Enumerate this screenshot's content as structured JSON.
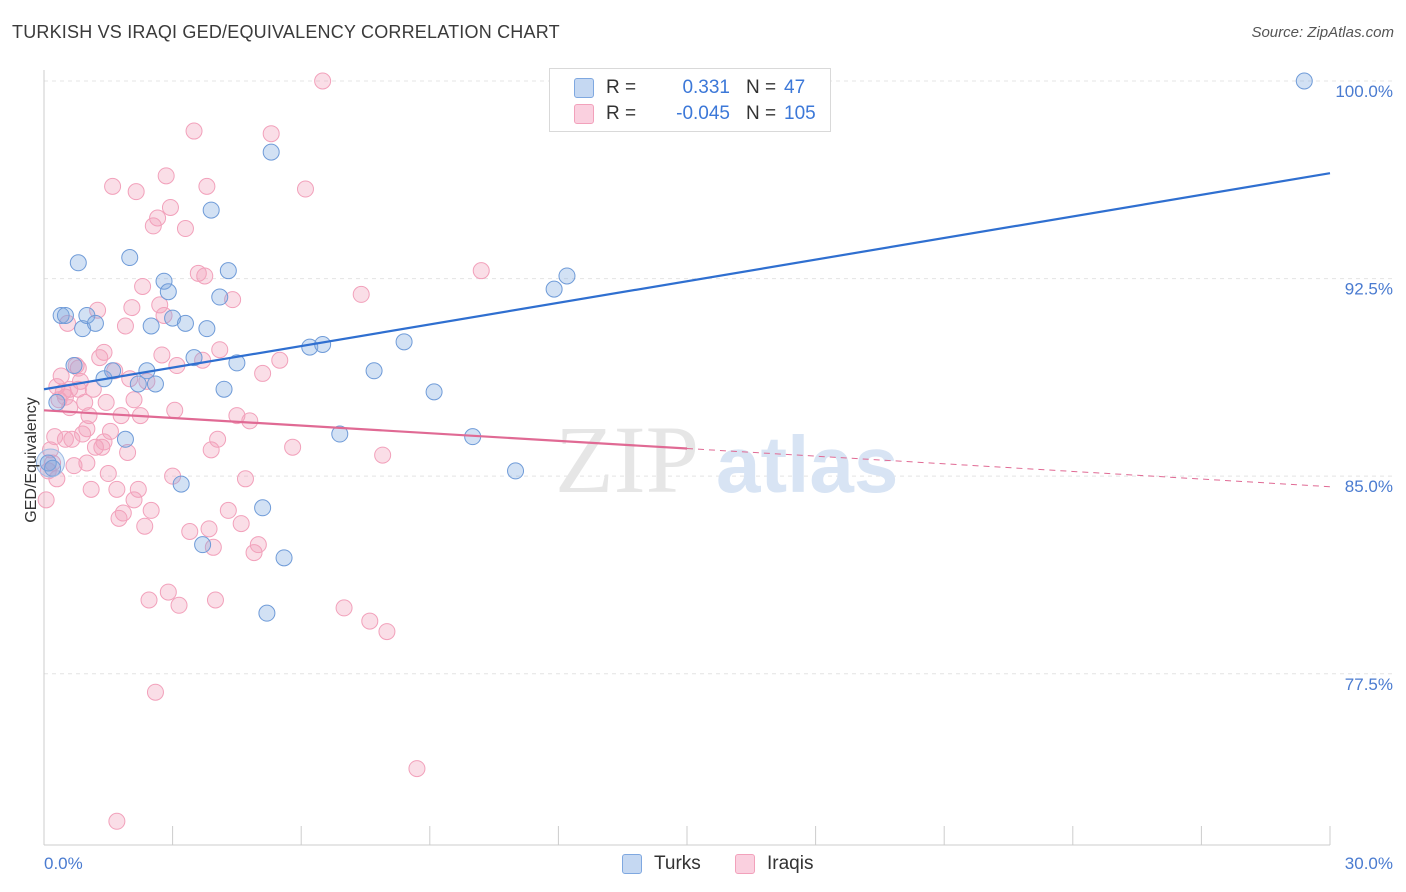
{
  "title": "TURKISH VS IRAQI GED/EQUIVALENCY CORRELATION CHART",
  "source": "Source: ZipAtlas.com",
  "legend": {
    "rows": [
      {
        "r_label": "R =",
        "r_value": "0.331",
        "n_label": "N =",
        "n_value": "47",
        "color": "#7fa8e0"
      },
      {
        "r_label": "R =",
        "r_value": "-0.045",
        "n_label": "N =",
        "n_value": "105",
        "color": "#f2a1bb"
      }
    ],
    "series_names": [
      "Turks",
      "Iraqis"
    ]
  },
  "watermark": {
    "zip": "ZIP",
    "atlas": "atlas"
  },
  "chart_data": {
    "type": "scatter",
    "title": "TURKISH VS IRAQI GED/EQUIVALENCY CORRELATION CHART",
    "ylabel": "GED/Equivalency",
    "xlim": [
      0,
      30
    ],
    "ylim": [
      71.0,
      100.0
    ],
    "y_ticks": [
      {
        "value": 77.5,
        "label": "77.5%"
      },
      {
        "value": 85.0,
        "label": "85.0%"
      },
      {
        "value": 92.5,
        "label": "92.5%"
      },
      {
        "value": 100.0,
        "label": "100.0%"
      }
    ],
    "x_tick_labels": [
      {
        "value": 0,
        "label": "0.0%"
      },
      {
        "value": 30,
        "label": "30.0%"
      }
    ],
    "grid": true,
    "legend_position": "top-center",
    "series": [
      {
        "name": "Turks",
        "color": "#7fa8e0",
        "line_color": "#2f6fd0",
        "trend": {
          "x": [
            0,
            30
          ],
          "y": [
            88.3,
            96.5
          ],
          "dashed_from": null
        },
        "points": [
          [
            0.1,
            85.5
          ],
          [
            0.2,
            85.3
          ],
          [
            0.3,
            87.8
          ],
          [
            0.4,
            91.1
          ],
          [
            0.5,
            91.1
          ],
          [
            0.7,
            89.2
          ],
          [
            0.8,
            93.1
          ],
          [
            0.9,
            90.6
          ],
          [
            1.0,
            91.1
          ],
          [
            1.2,
            90.8
          ],
          [
            1.4,
            88.7
          ],
          [
            1.6,
            89.0
          ],
          [
            1.9,
            86.4
          ],
          [
            2.0,
            93.3
          ],
          [
            2.2,
            88.5
          ],
          [
            2.4,
            89.0
          ],
          [
            2.5,
            90.7
          ],
          [
            2.6,
            88.5
          ],
          [
            2.8,
            92.4
          ],
          [
            2.9,
            92.0
          ],
          [
            3.0,
            91.0
          ],
          [
            3.2,
            84.7
          ],
          [
            3.3,
            90.8
          ],
          [
            3.5,
            89.5
          ],
          [
            3.7,
            82.4
          ],
          [
            3.8,
            90.6
          ],
          [
            3.9,
            95.1
          ],
          [
            4.1,
            91.8
          ],
          [
            4.2,
            88.3
          ],
          [
            4.3,
            92.8
          ],
          [
            4.5,
            89.3
          ],
          [
            5.1,
            83.8
          ],
          [
            5.2,
            79.8
          ],
          [
            5.3,
            97.3
          ],
          [
            5.6,
            81.9
          ],
          [
            6.2,
            89.9
          ],
          [
            6.5,
            90.0
          ],
          [
            6.9,
            86.6
          ],
          [
            7.7,
            89.0
          ],
          [
            8.4,
            90.1
          ],
          [
            9.1,
            88.2
          ],
          [
            10.0,
            86.5
          ],
          [
            11.0,
            85.2
          ],
          [
            11.9,
            92.1
          ],
          [
            12.2,
            92.6
          ],
          [
            12.7,
            100.0
          ],
          [
            29.4,
            100.0
          ]
        ]
      },
      {
        "name": "Iraqis",
        "color": "#f2a1bb",
        "line_color": "#e06a94",
        "trend": {
          "x": [
            0,
            30
          ],
          "y": [
            87.5,
            84.6
          ],
          "dashed_from": 15
        },
        "points": [
          [
            0.05,
            84.1
          ],
          [
            0.1,
            85.2
          ],
          [
            0.15,
            86.0
          ],
          [
            0.2,
            85.5
          ],
          [
            0.25,
            86.5
          ],
          [
            0.3,
            84.9
          ],
          [
            0.35,
            87.9
          ],
          [
            0.4,
            88.8
          ],
          [
            0.45,
            88.2
          ],
          [
            0.5,
            88.0
          ],
          [
            0.55,
            90.8
          ],
          [
            0.6,
            88.3
          ],
          [
            0.65,
            86.4
          ],
          [
            0.7,
            85.4
          ],
          [
            0.75,
            89.2
          ],
          [
            0.8,
            88.3
          ],
          [
            0.85,
            88.6
          ],
          [
            0.9,
            86.6
          ],
          [
            0.95,
            87.8
          ],
          [
            1.0,
            86.8
          ],
          [
            1.05,
            87.3
          ],
          [
            1.1,
            84.5
          ],
          [
            1.15,
            88.3
          ],
          [
            1.2,
            86.1
          ],
          [
            1.25,
            91.3
          ],
          [
            1.3,
            89.5
          ],
          [
            1.35,
            86.1
          ],
          [
            1.4,
            89.7
          ],
          [
            1.45,
            87.8
          ],
          [
            1.5,
            85.1
          ],
          [
            1.55,
            86.7
          ],
          [
            1.6,
            96.0
          ],
          [
            1.65,
            89.0
          ],
          [
            1.7,
            84.5
          ],
          [
            1.75,
            83.4
          ],
          [
            1.8,
            87.3
          ],
          [
            1.85,
            83.6
          ],
          [
            1.9,
            90.7
          ],
          [
            1.95,
            85.9
          ],
          [
            2.0,
            88.7
          ],
          [
            2.05,
            91.4
          ],
          [
            2.1,
            84.1
          ],
          [
            2.15,
            95.8
          ],
          [
            2.2,
            84.5
          ],
          [
            2.25,
            87.3
          ],
          [
            2.3,
            92.2
          ],
          [
            2.35,
            83.1
          ],
          [
            2.4,
            88.6
          ],
          [
            2.45,
            80.3
          ],
          [
            2.5,
            83.7
          ],
          [
            2.55,
            94.5
          ],
          [
            2.6,
            76.8
          ],
          [
            2.65,
            94.8
          ],
          [
            2.7,
            91.5
          ],
          [
            2.75,
            89.6
          ],
          [
            2.8,
            91.1
          ],
          [
            2.85,
            96.4
          ],
          [
            2.9,
            80.6
          ],
          [
            2.95,
            95.2
          ],
          [
            3.0,
            85.0
          ],
          [
            3.05,
            87.5
          ],
          [
            3.1,
            89.2
          ],
          [
            3.15,
            80.1
          ],
          [
            3.3,
            94.4
          ],
          [
            3.4,
            82.9
          ],
          [
            3.5,
            98.1
          ],
          [
            3.6,
            92.7
          ],
          [
            3.7,
            89.4
          ],
          [
            3.75,
            92.6
          ],
          [
            3.8,
            96.0
          ],
          [
            3.85,
            83.0
          ],
          [
            3.9,
            86.0
          ],
          [
            3.95,
            82.3
          ],
          [
            4.0,
            80.3
          ],
          [
            4.05,
            86.4
          ],
          [
            4.1,
            89.8
          ],
          [
            4.3,
            83.7
          ],
          [
            4.4,
            91.7
          ],
          [
            4.5,
            87.3
          ],
          [
            4.6,
            83.2
          ],
          [
            4.7,
            84.9
          ],
          [
            4.8,
            87.1
          ],
          [
            4.9,
            82.1
          ],
          [
            5.0,
            82.4
          ],
          [
            5.1,
            88.9
          ],
          [
            5.3,
            98.0
          ],
          [
            5.5,
            89.4
          ],
          [
            5.8,
            86.1
          ],
          [
            6.1,
            95.9
          ],
          [
            6.5,
            100.0
          ],
          [
            7.0,
            80.0
          ],
          [
            7.4,
            91.9
          ],
          [
            7.6,
            79.5
          ],
          [
            7.9,
            85.8
          ],
          [
            8.0,
            79.1
          ],
          [
            8.7,
            73.9
          ],
          [
            10.2,
            92.8
          ],
          [
            1.7,
            71.9
          ],
          [
            0.6,
            87.6
          ],
          [
            1.0,
            85.5
          ],
          [
            0.3,
            88.4
          ],
          [
            0.8,
            89.1
          ],
          [
            1.4,
            86.3
          ],
          [
            2.1,
            87.9
          ],
          [
            0.5,
            86.4
          ]
        ]
      }
    ]
  }
}
